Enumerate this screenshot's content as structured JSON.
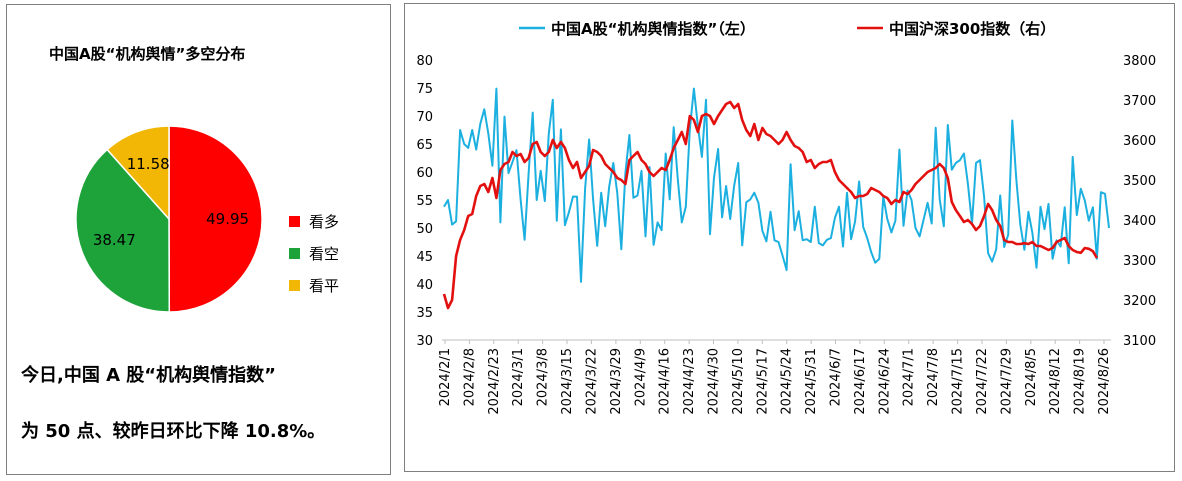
{
  "pie": {
    "title": "中国A股“机构舆情”多空分布",
    "slices": [
      {
        "label": "看多",
        "value": 49.95,
        "display": "49.95",
        "color": "#ff0000"
      },
      {
        "label": "看空",
        "value": 38.47,
        "display": "38.47",
        "color": "#1ea33b"
      },
      {
        "label": "看平",
        "value": 11.58,
        "display": "11.58",
        "color": "#f2b705"
      }
    ]
  },
  "summary": {
    "line1": "今日,中国 A 股“机构舆情指数”",
    "line2": "为 50 点、较昨日环比下降 10.8%。"
  },
  "chart_data": {
    "type": "line",
    "legend": [
      "中国A股“机构舆情指数”（左）",
      "中国沪深300指数（右）"
    ],
    "x_tick_labels": [
      "2024/2/1",
      "2024/2/8",
      "2024/2/23",
      "2024/3/1",
      "2024/3/8",
      "2024/3/15",
      "2024/3/22",
      "2024/3/29",
      "2024/4/9",
      "2024/4/16",
      "2024/4/23",
      "2024/4/30",
      "2024/5/10",
      "2024/5/17",
      "2024/5/24",
      "2024/5/31",
      "2024/6/7",
      "2024/6/17",
      "2024/6/24",
      "2024/7/1",
      "2024/7/8",
      "2024/7/15",
      "2024/7/22",
      "2024/7/29",
      "2024/8/5",
      "2024/8/12",
      "2024/8/19",
      "2024/8/26"
    ],
    "y_left": {
      "min": 30,
      "max": 80,
      "ticks": [
        30,
        35,
        40,
        45,
        50,
        55,
        60,
        65,
        70,
        75,
        80
      ]
    },
    "y_right": {
      "min": 3100,
      "max": 3800,
      "ticks": [
        3100,
        3200,
        3300,
        3400,
        3500,
        3600,
        3700,
        3800
      ]
    },
    "series": [
      {
        "name": "中国A股“机构舆情指数”（左）",
        "axis": "left",
        "color": "#1cb0e0",
        "values": [
          53.8,
          55.0,
          50.6,
          51.2,
          67.5,
          65.0,
          64.3,
          67.5,
          64.0,
          68.6,
          71.2,
          66.9,
          61.1,
          74.9,
          51.0,
          69.9,
          59.8,
          61.8,
          63.9,
          55.1,
          47.9,
          59.7,
          70.6,
          55.0,
          60.2,
          54.8,
          66.9,
          72.9,
          51.3,
          67.6,
          50.5,
          52.8,
          55.6,
          55.6,
          40.4,
          57.0,
          65.8,
          55.1,
          46.8,
          56.3,
          50.3,
          57.4,
          61.6,
          56.2,
          46.2,
          59.8,
          66.6,
          55.4,
          55.8,
          60.2,
          48.5,
          60.9,
          47.0,
          51.0,
          49.6,
          63.3,
          55.1,
          68.0,
          58.7,
          51.0,
          53.8,
          67.6,
          74.9,
          68.2,
          62.7,
          72.9,
          48.9,
          59.0,
          64.1,
          51.9,
          57.5,
          51.6,
          57.6,
          61.6,
          46.9,
          54.6,
          55.1,
          56.3,
          54.5,
          49.5,
          47.6,
          52.9,
          47.8,
          47.5,
          45.1,
          42.5,
          61.4,
          49.6,
          53.0,
          47.8,
          48.0,
          47.5,
          53.8,
          47.3,
          46.9,
          47.9,
          48.2,
          51.8,
          53.8,
          46.7,
          56.3,
          48.0,
          51.2,
          58.3,
          50.2,
          48.2,
          45.7,
          43.8,
          44.5,
          55.6,
          51.6,
          49.2,
          51.3,
          64.0,
          50.4,
          56.7,
          55.0,
          50.0,
          48.5,
          51.5,
          54.5,
          50.8,
          67.9,
          55.1,
          50.3,
          68.4,
          60.4,
          61.6,
          62.1,
          63.3,
          57.9,
          50.8,
          61.6,
          62.1,
          55.6,
          45.5,
          44.0,
          46.2,
          55.8,
          46.6,
          48.8,
          69.2,
          58.7,
          50.6,
          46.1,
          52.9,
          49.1,
          42.9,
          53.8,
          49.8,
          54.3,
          44.5,
          47.8,
          46.7,
          53.7,
          43.7,
          62.7,
          52.3,
          57.0,
          54.9,
          51.3,
          53.7,
          44.5,
          56.4,
          56.1,
          50.0
        ]
      },
      {
        "name": "中国沪深300指数（右）",
        "axis": "right",
        "color": "#e31010",
        "values": [
          3215,
          3180,
          3200,
          3310,
          3350,
          3375,
          3410,
          3415,
          3460,
          3485,
          3490,
          3470,
          3505,
          3455,
          3525,
          3540,
          3545,
          3570,
          3560,
          3565,
          3545,
          3555,
          3590,
          3595,
          3570,
          3560,
          3570,
          3600,
          3580,
          3595,
          3580,
          3550,
          3530,
          3545,
          3505,
          3520,
          3535,
          3575,
          3570,
          3560,
          3540,
          3530,
          3520,
          3505,
          3500,
          3490,
          3550,
          3560,
          3570,
          3550,
          3540,
          3520,
          3510,
          3520,
          3530,
          3525,
          3550,
          3580,
          3600,
          3620,
          3590,
          3660,
          3650,
          3620,
          3660,
          3665,
          3660,
          3640,
          3660,
          3675,
          3690,
          3695,
          3680,
          3690,
          3650,
          3625,
          3610,
          3640,
          3600,
          3630,
          3615,
          3610,
          3600,
          3590,
          3600,
          3620,
          3600,
          3585,
          3580,
          3570,
          3545,
          3550,
          3530,
          3540,
          3545,
          3545,
          3550,
          3520,
          3500,
          3490,
          3480,
          3470,
          3455,
          3460,
          3460,
          3465,
          3480,
          3475,
          3470,
          3460,
          3455,
          3440,
          3450,
          3445,
          3470,
          3465,
          3475,
          3490,
          3500,
          3510,
          3520,
          3525,
          3530,
          3540,
          3530,
          3505,
          3445,
          3425,
          3410,
          3395,
          3400,
          3390,
          3375,
          3385,
          3410,
          3440,
          3425,
          3400,
          3385,
          3350,
          3345,
          3345,
          3340,
          3340,
          3342,
          3340,
          3345,
          3335,
          3335,
          3330,
          3325,
          3330,
          3345,
          3350,
          3355,
          3335,
          3325,
          3320,
          3318,
          3330,
          3328,
          3322,
          3305
        ]
      }
    ]
  }
}
